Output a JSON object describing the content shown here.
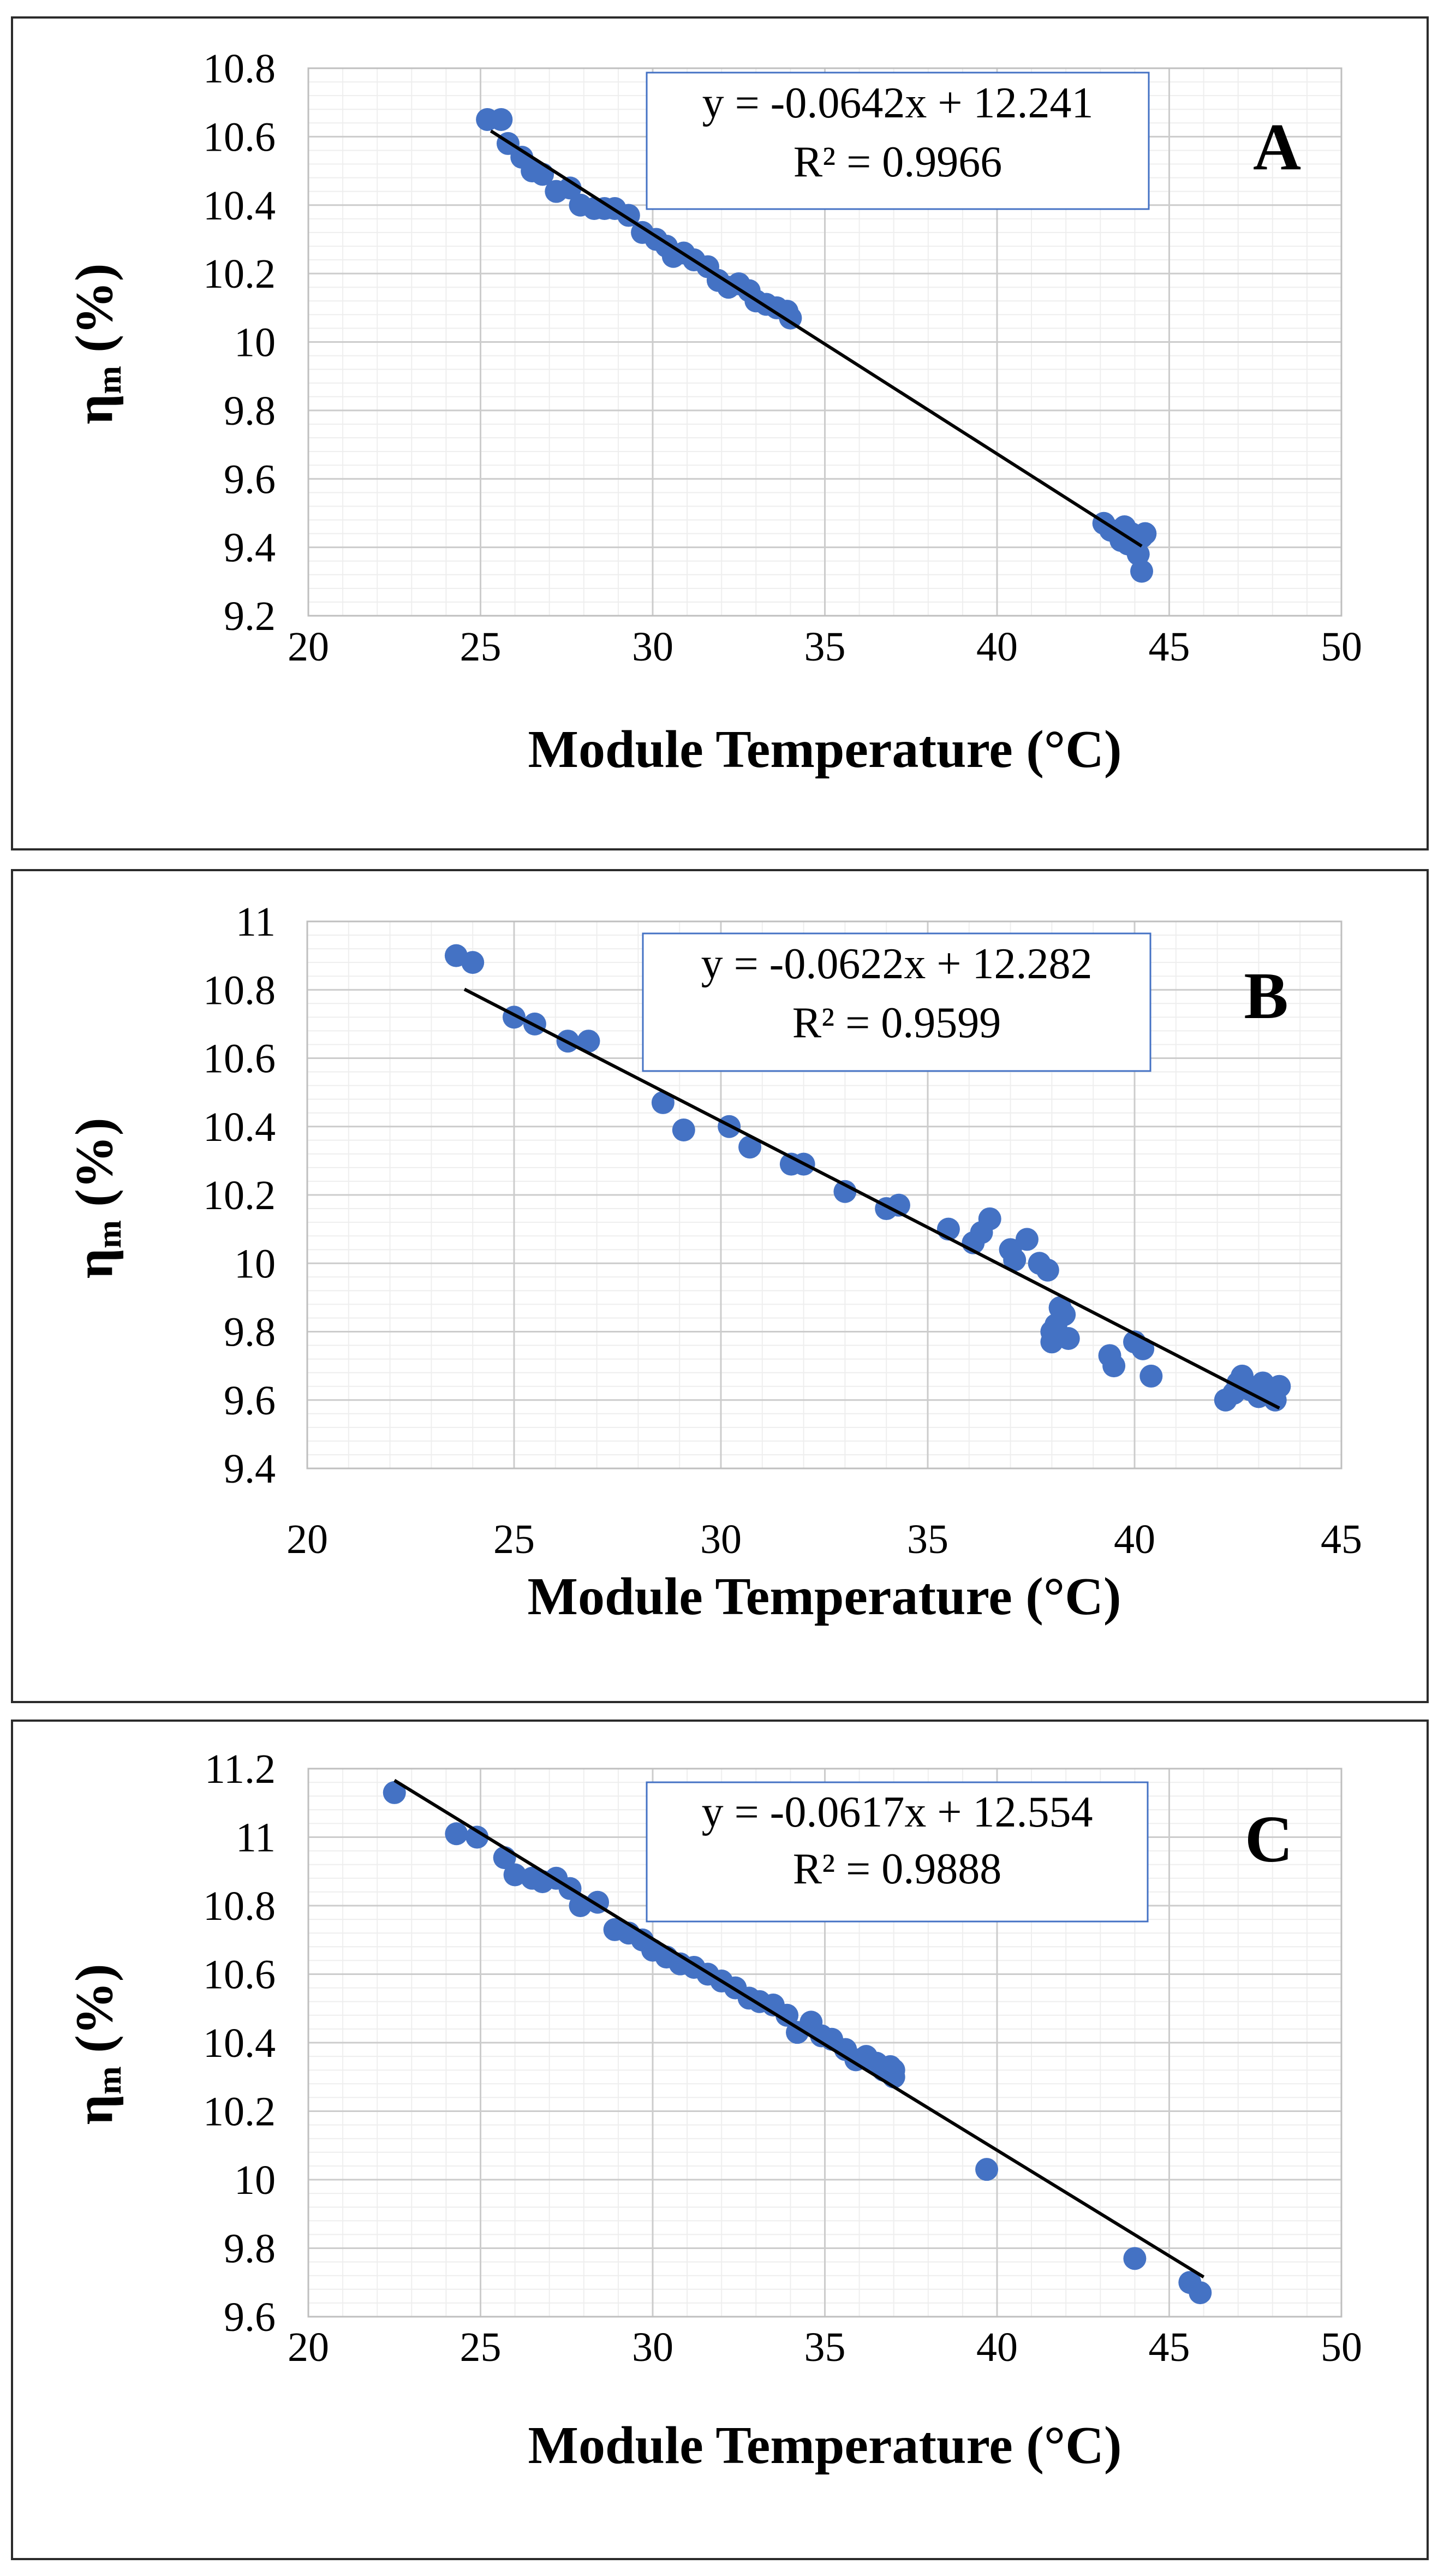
{
  "chart_data": [
    {
      "type": "scatter",
      "panel_label": "A",
      "xlabel": "Module Temperature",
      "xlabel_unit": "(°C)",
      "ylabel_symbol": "η",
      "ylabel_sub": "m",
      "ylabel_unit": "(%)",
      "xlim": [
        20,
        50
      ],
      "xticks": [
        20,
        25,
        30,
        35,
        40,
        45,
        50
      ],
      "ylim": [
        9.2,
        10.8
      ],
      "yticks": [
        9.2,
        9.4,
        9.6,
        9.8,
        10,
        10.2,
        10.4,
        10.6,
        10.8
      ],
      "xtick_labels": [
        "20",
        "25",
        "30",
        "35",
        "40",
        "45",
        "50"
      ],
      "ytick_labels": [
        "9.2",
        "9.4",
        "9.6",
        "9.8",
        "10",
        "10.2",
        "10.4",
        "10.6",
        "10.8"
      ],
      "grid": true,
      "trendline": {
        "slope": -0.0642,
        "intercept": 12.241,
        "x_range": [
          25.3,
          44.2
        ]
      },
      "equation": "y = -0.0642x + 12.241",
      "r_squared": "R² = 0.9966",
      "x": [
        25.2,
        25.6,
        25.8,
        26.2,
        26.5,
        26.8,
        27.2,
        27.6,
        27.9,
        28.3,
        28.6,
        28.9,
        29.3,
        29.7,
        30.1,
        30.4,
        30.6,
        30.9,
        31.2,
        31.6,
        31.9,
        32.2,
        32.5,
        32.8,
        33.0,
        33.3,
        33.6,
        33.9,
        34.0,
        43.1,
        43.3,
        43.5,
        43.6,
        43.7,
        43.8,
        43.9,
        44.0,
        44.1,
        44.2,
        44.3,
        44.2
      ],
      "y": [
        10.65,
        10.65,
        10.58,
        10.54,
        10.5,
        10.49,
        10.44,
        10.45,
        10.4,
        10.39,
        10.39,
        10.39,
        10.37,
        10.32,
        10.3,
        10.28,
        10.25,
        10.26,
        10.24,
        10.22,
        10.18,
        10.16,
        10.17,
        10.15,
        10.12,
        10.11,
        10.1,
        10.09,
        10.07,
        9.47,
        9.45,
        9.44,
        9.42,
        9.46,
        9.41,
        9.44,
        9.4,
        9.38,
        9.43,
        9.44,
        9.33
      ],
      "marker_color": "#4472C4",
      "line_color": "#000000"
    },
    {
      "type": "scatter",
      "panel_label": "B",
      "xlabel": "Module Temperature",
      "xlabel_unit": "(°C)",
      "ylabel_symbol": "η",
      "ylabel_sub": "m",
      "ylabel_unit": "(%)",
      "xlim": [
        20,
        45
      ],
      "xticks": [
        20,
        25,
        30,
        35,
        40,
        45
      ],
      "ylim": [
        9.4,
        11
      ],
      "yticks": [
        9.4,
        9.6,
        9.8,
        10,
        10.2,
        10.4,
        10.6,
        10.8,
        11
      ],
      "xtick_labels": [
        "20",
        "25",
        "30",
        "35",
        "40",
        "45"
      ],
      "ytick_labels": [
        "9.4",
        "9.6",
        "9.8",
        "10",
        "10.2",
        "10.4",
        "10.6",
        "10.8",
        "11"
      ],
      "grid": true,
      "trendline": {
        "slope": -0.0622,
        "intercept": 12.282,
        "x_range": [
          23.8,
          43.5
        ]
      },
      "equation": "y = -0.0622x + 12.282",
      "r_squared": "R² = 0.9599",
      "x": [
        23.6,
        24.0,
        25.0,
        25.5,
        26.3,
        26.8,
        28.6,
        29.1,
        30.2,
        30.7,
        31.7,
        32.0,
        33.0,
        34.0,
        34.3,
        35.5,
        36.1,
        36.3,
        36.5,
        37.0,
        37.1,
        37.4,
        37.7,
        37.9,
        38.0,
        38.0,
        38.1,
        38.2,
        38.3,
        38.4,
        39.4,
        39.5,
        40.0,
        40.2,
        40.4,
        42.2,
        42.4,
        42.5,
        42.6,
        42.8,
        43.0,
        43.1,
        43.3,
        43.4,
        43.5
      ],
      "y": [
        10.9,
        10.88,
        10.72,
        10.7,
        10.65,
        10.65,
        10.47,
        10.39,
        10.4,
        10.34,
        10.29,
        10.29,
        10.21,
        10.16,
        10.17,
        10.1,
        10.06,
        10.09,
        10.13,
        10.04,
        10.01,
        10.07,
        10.0,
        9.98,
        9.8,
        9.77,
        9.82,
        9.87,
        9.85,
        9.78,
        9.73,
        9.7,
        9.77,
        9.75,
        9.67,
        9.6,
        9.62,
        9.65,
        9.67,
        9.63,
        9.61,
        9.65,
        9.62,
        9.6,
        9.64
      ],
      "marker_color": "#4472C4",
      "line_color": "#000000"
    },
    {
      "type": "scatter",
      "panel_label": "C",
      "xlabel": "Module Temperature",
      "xlabel_unit": "(°C)",
      "ylabel_symbol": "η",
      "ylabel_sub": "m",
      "ylabel_unit": "(%)",
      "xlim": [
        20,
        50
      ],
      "xticks": [
        20,
        25,
        30,
        35,
        40,
        45,
        50
      ],
      "ylim": [
        9.6,
        11.2
      ],
      "yticks": [
        9.6,
        9.8,
        10,
        10.2,
        10.4,
        10.6,
        10.8,
        11,
        11.2
      ],
      "xtick_labels": [
        "20",
        "25",
        "30",
        "35",
        "40",
        "45",
        "50"
      ],
      "ytick_labels": [
        "9.6",
        "9.8",
        "10",
        "10.2",
        "10.4",
        "10.6",
        "10.8",
        "11",
        "11.2"
      ],
      "grid": true,
      "trendline": {
        "slope": -0.0617,
        "intercept": 12.554,
        "x_range": [
          22.5,
          46.0
        ]
      },
      "equation": "y = -0.0617x + 12.554",
      "r_squared": "R² = 0.9888",
      "x": [
        22.5,
        24.3,
        24.9,
        25.7,
        26.0,
        26.5,
        26.8,
        27.2,
        27.6,
        27.9,
        28.4,
        28.9,
        29.3,
        29.7,
        30.0,
        30.4,
        30.8,
        31.2,
        31.6,
        32.0,
        32.4,
        32.8,
        33.1,
        33.5,
        33.9,
        34.2,
        34.6,
        34.9,
        35.2,
        35.6,
        35.9,
        36.2,
        36.5,
        36.7,
        36.9,
        37.0,
        37.0,
        39.7,
        44.0,
        45.6,
        45.9
      ],
      "y": [
        11.13,
        11.01,
        11.0,
        10.94,
        10.89,
        10.88,
        10.87,
        10.88,
        10.85,
        10.8,
        10.81,
        10.73,
        10.72,
        10.7,
        10.67,
        10.65,
        10.63,
        10.62,
        10.6,
        10.58,
        10.56,
        10.53,
        10.52,
        10.51,
        10.48,
        10.43,
        10.46,
        10.42,
        10.41,
        10.38,
        10.35,
        10.36,
        10.34,
        10.32,
        10.33,
        10.3,
        10.32,
        10.03,
        9.77,
        9.7,
        9.67
      ],
      "marker_color": "#4472C4",
      "line_color": "#000000"
    }
  ]
}
